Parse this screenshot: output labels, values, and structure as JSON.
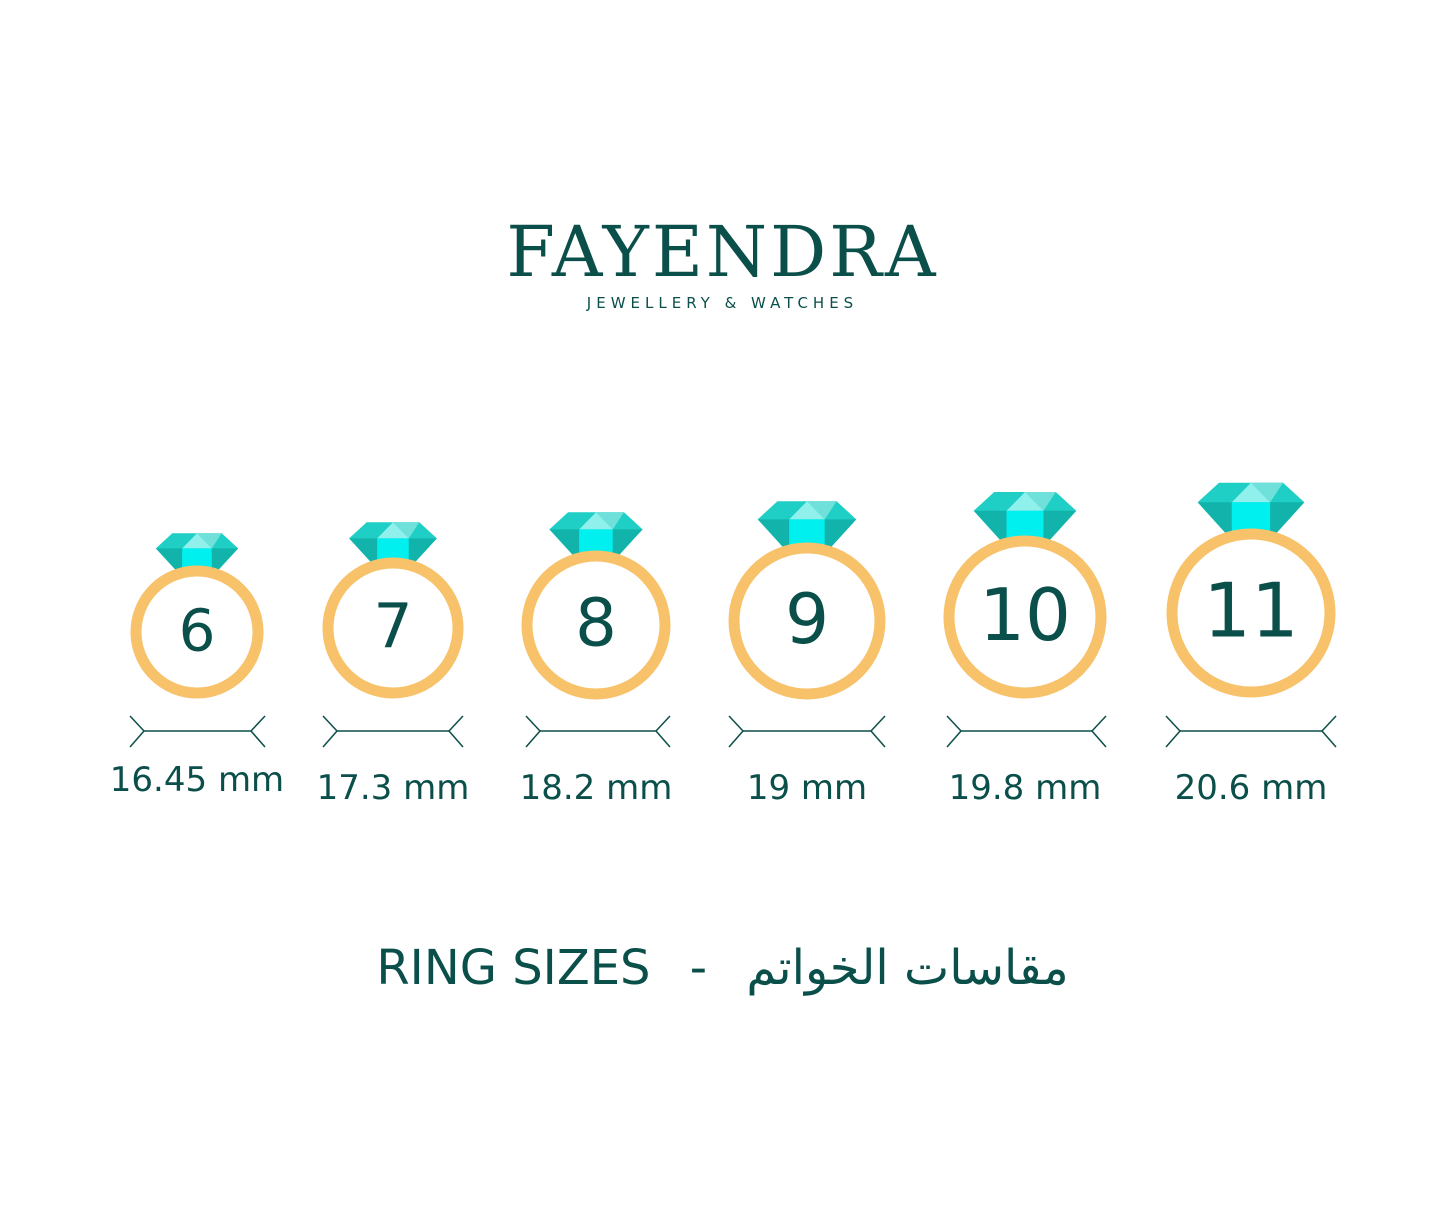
{
  "brand": {
    "name": "FAYENDRA",
    "tagline": "JEWELLERY & WATCHES"
  },
  "colors": {
    "text": "#0b4f4a",
    "ring": "#f7c26a",
    "gem_light": "#6fe0da",
    "gem_mid": "#1fcfc5",
    "gem_dark": "#11b3ab",
    "gem_bright": "#00f0f0"
  },
  "rings": [
    {
      "size": "6",
      "diameter": "16.45 mm"
    },
    {
      "size": "7",
      "diameter": "17.3 mm"
    },
    {
      "size": "8",
      "diameter": "18.2 mm"
    },
    {
      "size": "9",
      "diameter": "19 mm"
    },
    {
      "size": "10",
      "diameter": "19.8 mm"
    },
    {
      "size": "11",
      "diameter": "20.6 mm"
    }
  ],
  "footer": {
    "english": "RING SIZES",
    "separator": "-",
    "arabic": "مقاسات الخواتم"
  }
}
